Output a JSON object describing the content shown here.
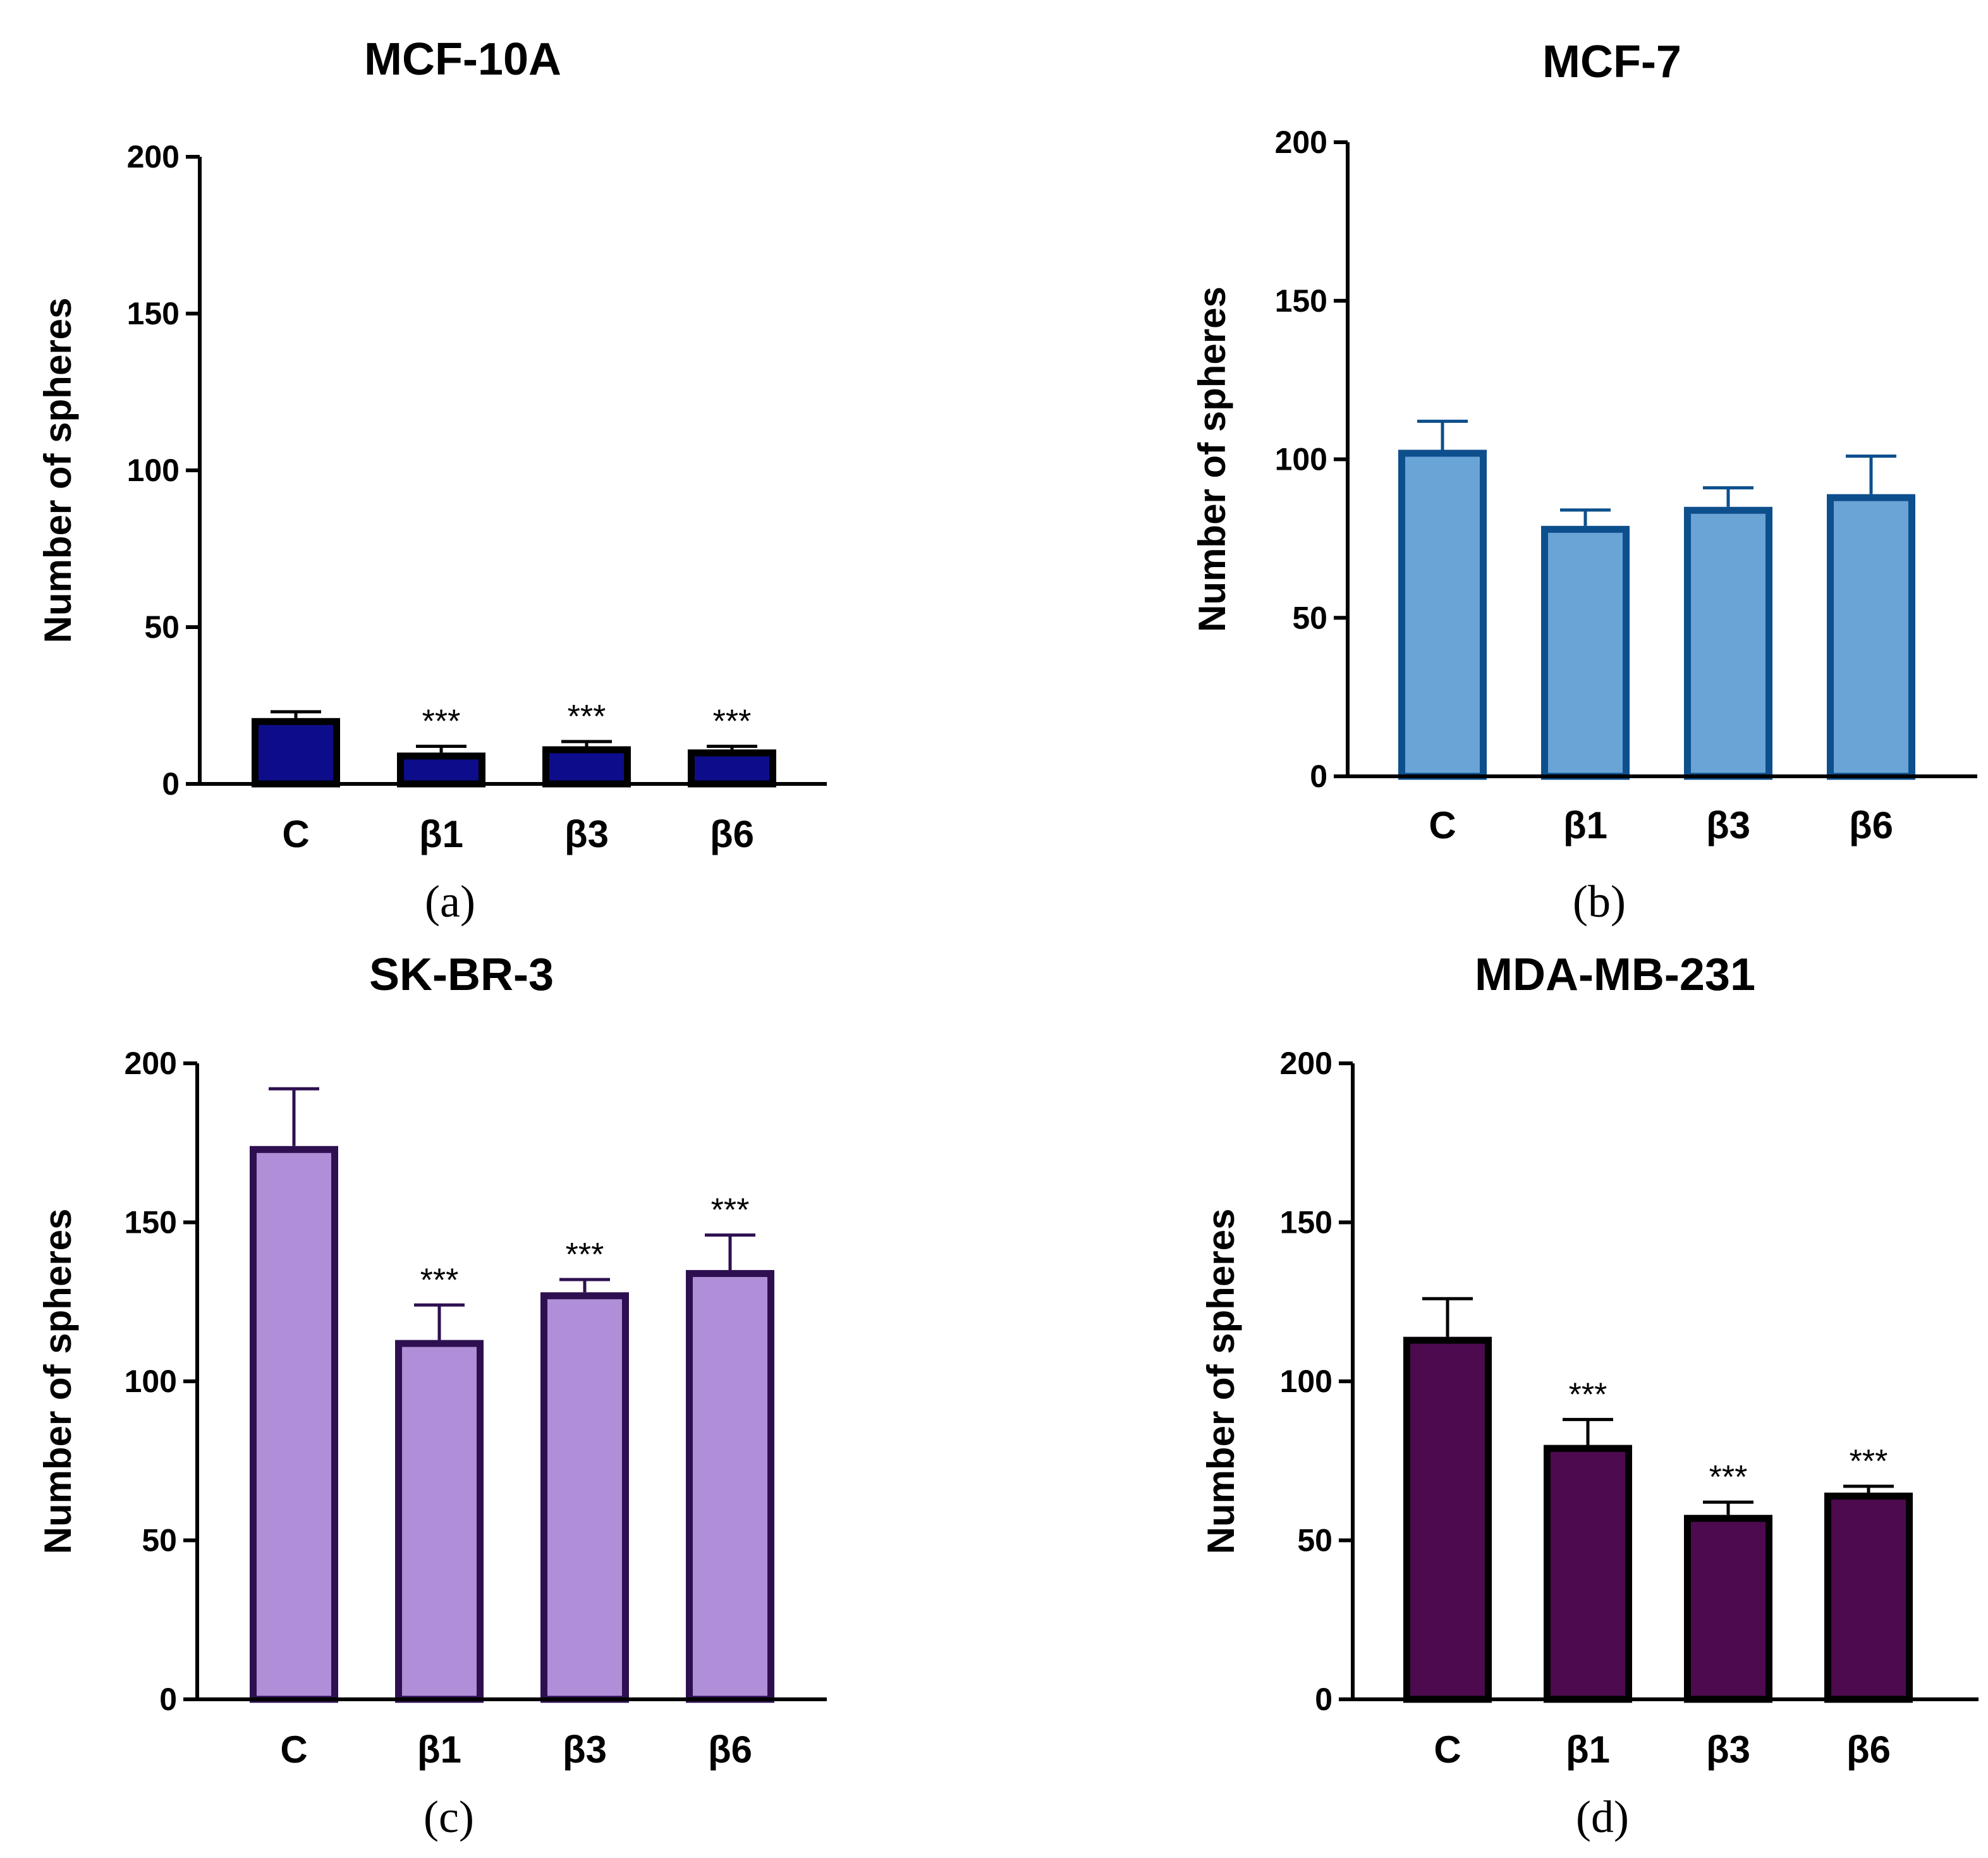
{
  "chart_data": [
    {
      "type": "bar",
      "title": "MCF-10A",
      "panel_label": "(a)",
      "ylabel": "Number of spheres",
      "xlabel": "",
      "ylim": [
        0,
        200
      ],
      "yticks": [
        "0",
        "50",
        "100",
        "150",
        "200"
      ],
      "categories": [
        "C",
        "β1",
        "β3",
        "β6"
      ],
      "values": [
        21,
        10,
        12,
        11
      ],
      "errors": [
        2,
        2,
        1.5,
        1
      ],
      "significance": [
        "",
        "***",
        "***",
        "***"
      ],
      "fill_color": "#0d0d8c",
      "edge_color": "#000000"
    },
    {
      "type": "bar",
      "title": "MCF-7",
      "panel_label": "(b)",
      "ylabel": "Number of spheres",
      "xlabel": "",
      "ylim": [
        0,
        200
      ],
      "yticks": [
        "0",
        "50",
        "100",
        "150",
        "200"
      ],
      "categories": [
        "C",
        "β1",
        "β3",
        "β6"
      ],
      "values": [
        103,
        79,
        85,
        89
      ],
      "errors": [
        9,
        5,
        6,
        12
      ],
      "significance": [
        "",
        "",
        "",
        ""
      ],
      "fill_color": "#6aa4d6",
      "edge_color": "#0d4f8c"
    },
    {
      "type": "bar",
      "title": "SK-BR-3",
      "panel_label": "(c)",
      "ylabel": "Number of spheres",
      "xlabel": "",
      "ylim": [
        0,
        200
      ],
      "yticks": [
        "0",
        "50",
        "100",
        "150",
        "200"
      ],
      "categories": [
        "C",
        "β1",
        "β3",
        "β6"
      ],
      "values": [
        174,
        113,
        128,
        135
      ],
      "errors": [
        18,
        11,
        4,
        11
      ],
      "significance": [
        "",
        "***",
        "***",
        "***"
      ],
      "fill_color": "#b18ed8",
      "edge_color": "#2e1050"
    },
    {
      "type": "bar",
      "title": "MDA-MB-231",
      "panel_label": "(d)",
      "ylabel": "Number of spheres",
      "xlabel": "",
      "ylim": [
        0,
        200
      ],
      "yticks": [
        "0",
        "50",
        "100",
        "150",
        "200"
      ],
      "categories": [
        "C",
        "β1",
        "β3",
        "β6"
      ],
      "values": [
        114,
        80,
        58,
        65
      ],
      "errors": [
        12,
        8,
        4,
        2
      ],
      "significance": [
        "",
        "***",
        "***",
        "***"
      ],
      "fill_color": "#4d0a4f",
      "edge_color": "#000000"
    }
  ]
}
